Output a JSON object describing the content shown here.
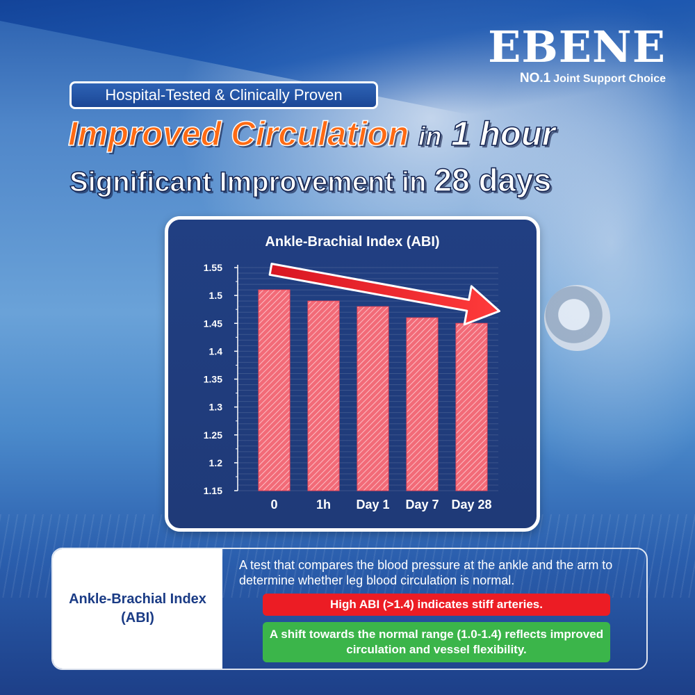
{
  "brand": {
    "name": "EBENE",
    "tag_no1": "NO.1",
    "tag_text": "Joint Support Choice"
  },
  "badge": "Hospital-Tested & Clinically Proven",
  "headline": {
    "line1_part1": "Improved Circulation",
    "line1_part2": "in",
    "line1_part3": "1 hour",
    "line2_part1": "Significant Improvement",
    "line2_part2": "in",
    "line2_part3": "28 days"
  },
  "chart_data": {
    "type": "bar",
    "title": "Ankle-Brachial Index (ABI)",
    "categories": [
      "0",
      "1h",
      "Day 1",
      "Day 7",
      "Day 28"
    ],
    "values": [
      1.51,
      1.49,
      1.48,
      1.46,
      1.45
    ],
    "ylim": [
      1.15,
      1.55
    ],
    "yticks": [
      1.15,
      1.2,
      1.25,
      1.3,
      1.35,
      1.4,
      1.45,
      1.5,
      1.55
    ],
    "ytick_labels": [
      "1.15",
      "1.2",
      "1.25",
      "1.3",
      "1.35",
      "1.4",
      "1.45",
      "1.5",
      "1.55"
    ],
    "grid": true,
    "annotation": "downward-trend-arrow",
    "colors": {
      "bar": "#f0606e",
      "arrow": "#e8202a",
      "background": "#213f82"
    }
  },
  "info": {
    "term": "Ankle-Brachial Index (ABI)",
    "description": "A test that compares the blood pressure at the ankle and the arm to determine whether leg blood circulation is normal.",
    "warning": "High ABI (>1.4) indicates stiff arteries.",
    "benefit": "A shift towards the normal range (1.0-1.4) reflects improved circulation and vessel flexibility."
  }
}
